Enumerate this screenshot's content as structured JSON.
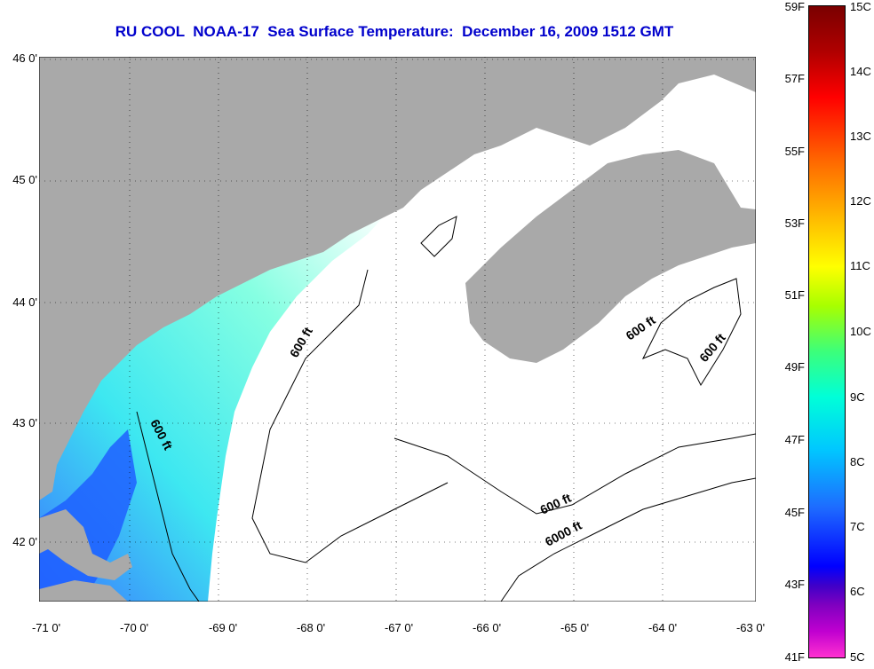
{
  "title": "RU COOL  NOAA-17  Sea Surface Temperature:  December 16, 2009 1512 GMT",
  "map": {
    "lat_ticks": [
      "46 0'",
      "45 0'",
      "44 0'",
      "43 0'",
      "42 0'"
    ],
    "lon_ticks": [
      "-71 0'",
      "-70 0'",
      "-69 0'",
      "-68 0'",
      "-67 0'",
      "-66 0'",
      "-65 0'",
      "-64 0'",
      "-63 0'"
    ],
    "contour_labels": [
      "600 ft",
      "600 ft",
      "600 ft",
      "600 ft",
      "600 ft",
      "6000 ft"
    ],
    "colors": {
      "land": "#a9a9a9",
      "ocean_nodata": "#ffffff",
      "water_warm": "#33e6f0",
      "water_cool": "#2f6fff"
    }
  },
  "colorbar": {
    "fahrenheit": [
      "59F",
      "57F",
      "55F",
      "53F",
      "51F",
      "49F",
      "47F",
      "45F",
      "43F",
      "41F"
    ],
    "celsius": [
      "15C",
      "14C",
      "13C",
      "12C",
      "11C",
      "10C",
      "9C",
      "8C",
      "7C",
      "6C",
      "5C"
    ]
  }
}
